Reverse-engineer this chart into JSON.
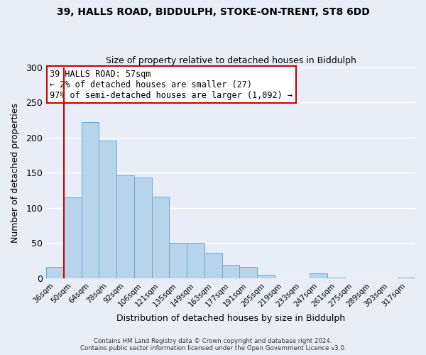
{
  "title_line1": "39, HALLS ROAD, BIDDULPH, STOKE-ON-TRENT, ST8 6DD",
  "title_line2": "Size of property relative to detached houses in Biddulph",
  "xlabel": "Distribution of detached houses by size in Biddulph",
  "ylabel": "Number of detached properties",
  "bar_labels": [
    "36sqm",
    "50sqm",
    "64sqm",
    "78sqm",
    "92sqm",
    "106sqm",
    "121sqm",
    "135sqm",
    "149sqm",
    "163sqm",
    "177sqm",
    "191sqm",
    "205sqm",
    "219sqm",
    "233sqm",
    "247sqm",
    "261sqm",
    "275sqm",
    "289sqm",
    "303sqm",
    "317sqm"
  ],
  "bar_heights": [
    16,
    115,
    222,
    196,
    146,
    143,
    116,
    50,
    50,
    36,
    19,
    16,
    5,
    0,
    0,
    7,
    1,
    0,
    0,
    0,
    1
  ],
  "bar_color": "#b8d4ea",
  "bar_edge_color": "#6aaad4",
  "highlight_bar_index": 1,
  "highlight_color": "#cc0000",
  "ylim": [
    0,
    300
  ],
  "yticks": [
    0,
    50,
    100,
    150,
    200,
    250,
    300
  ],
  "annotation_title": "39 HALLS ROAD: 57sqm",
  "annotation_line2": "← 2% of detached houses are smaller (27)",
  "annotation_line3": "97% of semi-detached houses are larger (1,092) →",
  "annotation_box_color": "#ffffff",
  "annotation_box_edge_color": "#cc0000",
  "footer_line1": "Contains HM Land Registry data © Crown copyright and database right 2024.",
  "footer_line2": "Contains public sector information licensed under the Open Government Licence v3.0.",
  "background_color": "#e8eef8",
  "grid_color": "#ffffff"
}
